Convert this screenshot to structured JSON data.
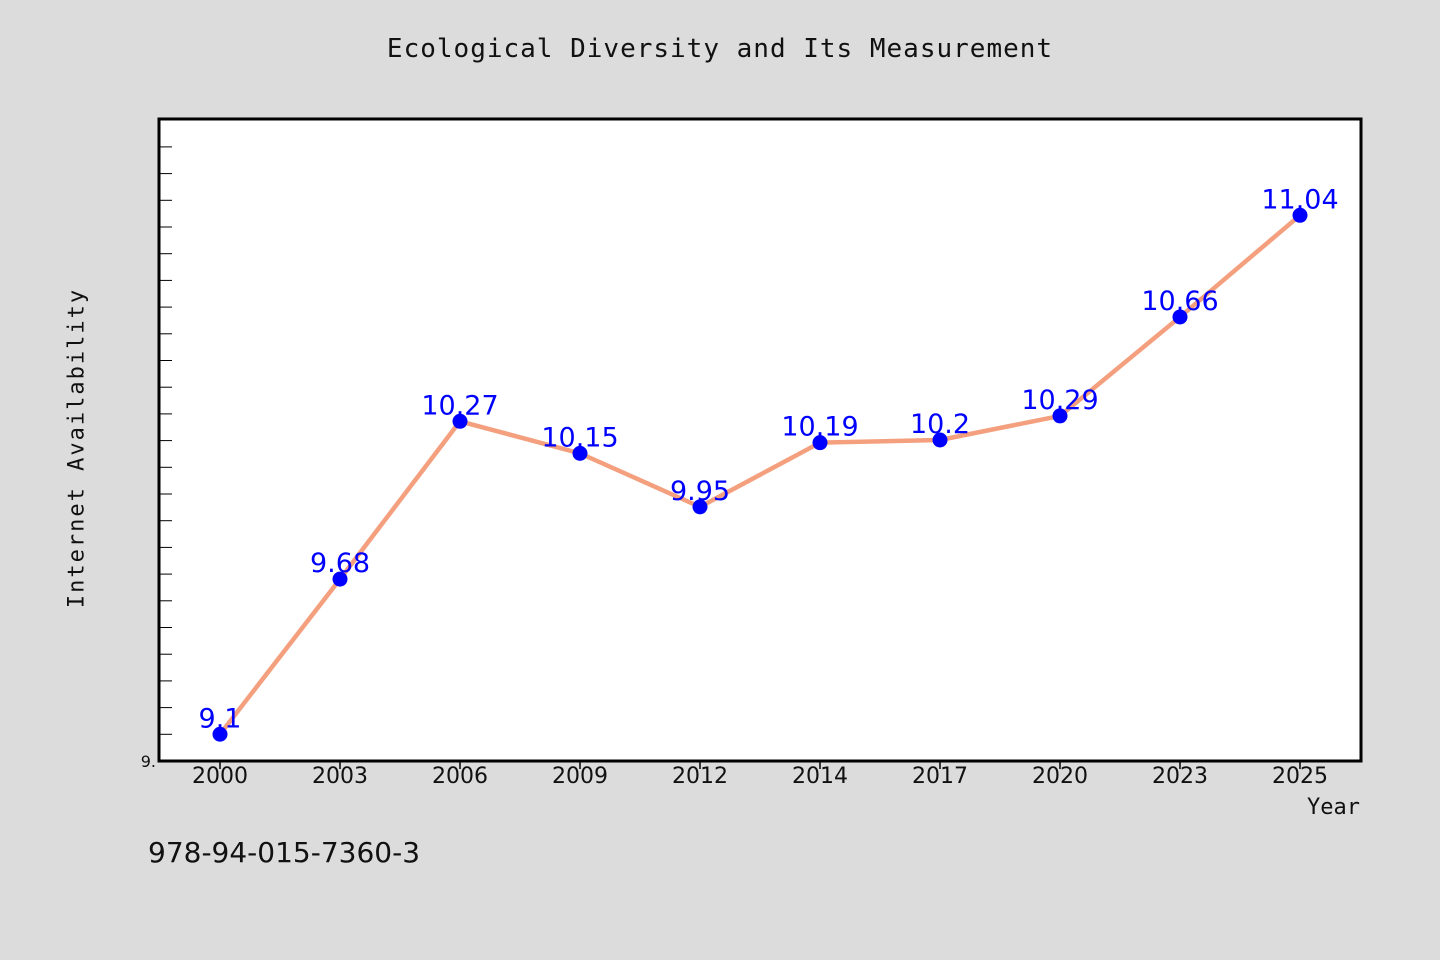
{
  "page": {
    "isbn": "978-94-015-7360-3"
  },
  "colors": {
    "background": "#dcdcdc",
    "plot_background": "#ffffff",
    "line": "#f4a07e",
    "marker": "#0000ff",
    "data_label": "#0000ff"
  },
  "chart_data": {
    "type": "line",
    "title": "Ecological Diversity and Its Measurement",
    "xlabel": "Year",
    "ylabel": "Internet Availability",
    "categories": [
      "2000",
      "2003",
      "2006",
      "2009",
      "2012",
      "2014",
      "2017",
      "2020",
      "2023",
      "2025"
    ],
    "values": [
      9.1,
      9.68,
      10.27,
      10.15,
      9.95,
      10.19,
      10.2,
      10.29,
      10.66,
      11.04
    ],
    "data_labels": [
      "9.1",
      "9.68",
      "10.27",
      "10.15",
      "9.95",
      "10.19",
      "10.2",
      "10.29",
      "10.66",
      "11.04"
    ],
    "y_tick_labels": [
      "9."
    ],
    "ylim": [
      9.0,
      11.4
    ],
    "grid": false,
    "legend": "none"
  }
}
